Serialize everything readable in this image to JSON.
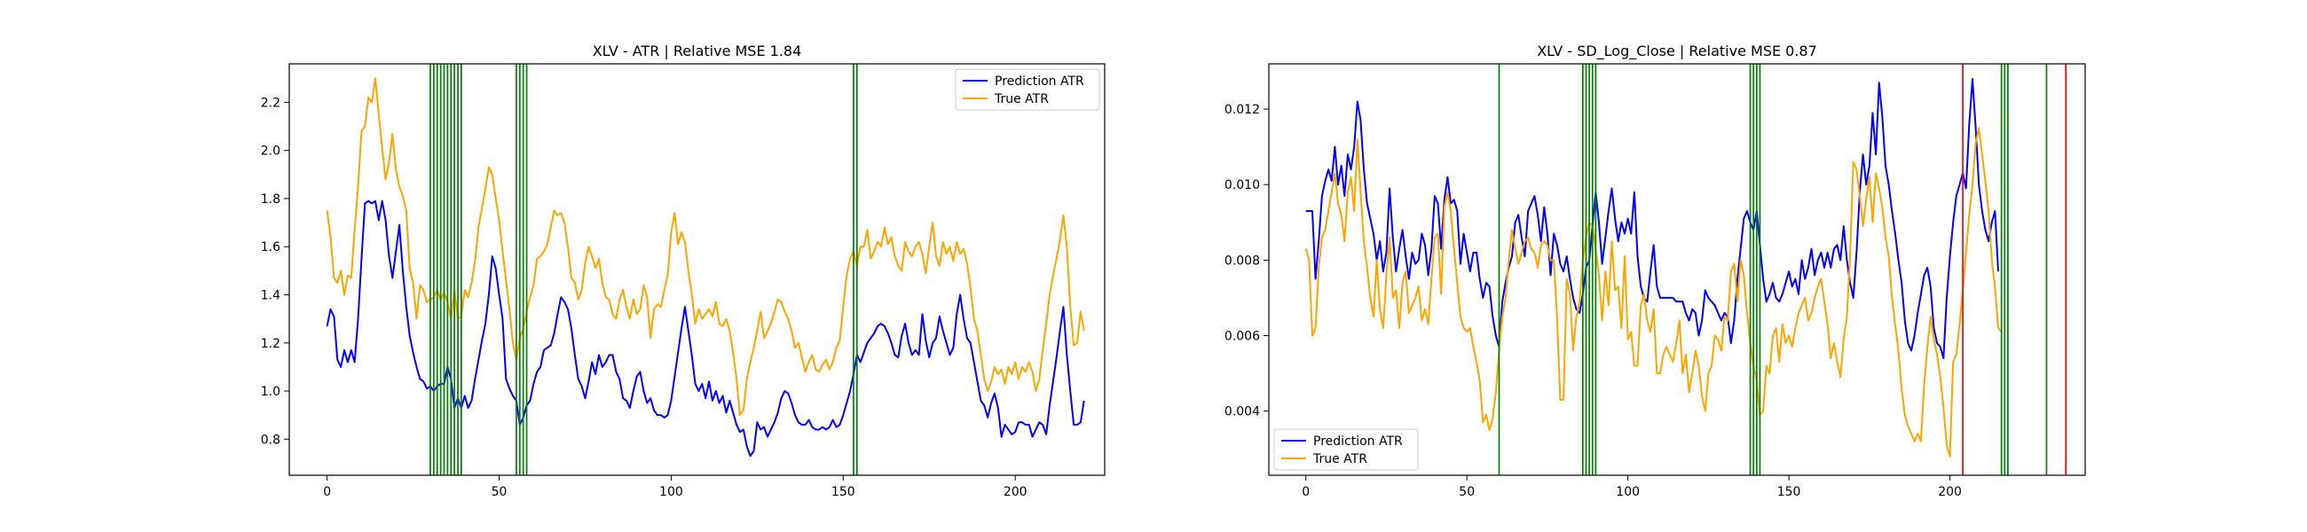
{
  "chart_data": [
    {
      "type": "line",
      "title": "XLV - ATR | Relative MSE 1.84",
      "xlabel": "",
      "ylabel": "",
      "xlim": [
        -11,
        226
      ],
      "ylim": [
        0.65,
        2.36
      ],
      "xticks": [
        0,
        50,
        100,
        150,
        200
      ],
      "yticks": [
        0.8,
        1.0,
        1.2,
        1.4,
        1.6,
        1.8,
        2.0,
        2.2
      ],
      "ytick_format": 1,
      "legend_position": "upper right",
      "vlines": [
        {
          "color": "#008000",
          "x": [
            30,
            31,
            32,
            33,
            34,
            35,
            36,
            37,
            38,
            39,
            55,
            56,
            57,
            58,
            153,
            154
          ]
        }
      ],
      "series": [
        {
          "name": "Prediction ATR",
          "color": "#0000ff",
          "values": [
            1.27,
            1.34,
            1.31,
            1.13,
            1.1,
            1.17,
            1.12,
            1.17,
            1.12,
            1.3,
            1.55,
            1.78,
            1.79,
            1.78,
            1.79,
            1.71,
            1.79,
            1.71,
            1.56,
            1.47,
            1.58,
            1.69,
            1.5,
            1.35,
            1.23,
            1.16,
            1.1,
            1.05,
            1.04,
            1.01,
            1.02,
            1.0,
            1.02,
            1.03,
            1.03,
            1.1,
            1.05,
            0.93,
            0.97,
            0.93,
            0.98,
            0.93,
            0.96,
            1.05,
            1.13,
            1.21,
            1.28,
            1.4,
            1.56,
            1.51,
            1.4,
            1.3,
            1.05,
            1.01,
            0.98,
            0.96,
            0.86,
            0.89,
            0.94,
            0.96,
            1.03,
            1.08,
            1.1,
            1.17,
            1.18,
            1.19,
            1.24,
            1.32,
            1.39,
            1.37,
            1.34,
            1.26,
            1.15,
            1.05,
            1.02,
            0.97,
            1.04,
            1.12,
            1.07,
            1.15,
            1.1,
            1.12,
            1.15,
            1.15,
            1.08,
            1.05,
            0.97,
            0.96,
            0.93,
            1.0,
            1.06,
            1.08,
            1.0,
            0.95,
            0.97,
            0.92,
            0.9,
            0.9,
            0.89,
            0.9,
            0.96,
            1.06,
            1.16,
            1.26,
            1.35,
            1.25,
            1.15,
            1.03,
            1.0,
            1.03,
            0.97,
            1.04,
            0.96,
            1.0,
            0.95,
            0.98,
            0.91,
            0.96,
            0.91,
            0.86,
            0.83,
            0.84,
            0.77,
            0.73,
            0.75,
            0.87,
            0.84,
            0.85,
            0.81,
            0.84,
            0.87,
            0.91,
            0.97,
            1.0,
            0.99,
            0.95,
            0.9,
            0.87,
            0.86,
            0.86,
            0.88,
            0.85,
            0.84,
            0.84,
            0.85,
            0.84,
            0.85,
            0.88,
            0.85,
            0.86,
            0.9,
            0.95,
            1.0,
            1.07,
            1.15,
            1.12,
            1.16,
            1.2,
            1.22,
            1.24,
            1.27,
            1.28,
            1.27,
            1.24,
            1.2,
            1.15,
            1.14,
            1.23,
            1.28,
            1.2,
            1.15,
            1.17,
            1.15,
            1.32,
            1.21,
            1.14,
            1.2,
            1.22,
            1.31,
            1.25,
            1.2,
            1.15,
            1.18,
            1.32,
            1.4,
            1.3,
            1.22,
            1.2,
            1.12,
            1.04,
            0.96,
            0.94,
            0.89,
            0.95,
            0.99,
            0.93,
            0.81,
            0.86,
            0.84,
            0.82,
            0.83,
            0.87,
            0.87,
            0.86,
            0.86,
            0.81,
            0.84,
            0.87,
            0.86,
            0.82,
            0.94,
            1.04,
            1.14,
            1.25,
            1.35,
            1.15,
            1.0,
            0.86,
            0.86,
            0.87,
            0.96
          ]
        },
        {
          "name": "True ATR",
          "color": "#ffa500",
          "values": [
            1.75,
            1.64,
            1.47,
            1.45,
            1.5,
            1.4,
            1.48,
            1.47,
            1.67,
            1.85,
            2.08,
            2.1,
            2.22,
            2.2,
            2.3,
            2.15,
            2.01,
            1.88,
            1.95,
            2.07,
            1.92,
            1.85,
            1.81,
            1.75,
            1.51,
            1.45,
            1.3,
            1.44,
            1.42,
            1.37,
            1.38,
            1.39,
            1.42,
            1.38,
            1.41,
            1.37,
            1.3,
            1.42,
            1.3,
            1.31,
            1.42,
            1.39,
            1.45,
            1.54,
            1.68,
            1.76,
            1.84,
            1.93,
            1.9,
            1.8,
            1.71,
            1.58,
            1.46,
            1.34,
            1.2,
            1.13,
            1.22,
            1.26,
            1.33,
            1.39,
            1.44,
            1.55,
            1.56,
            1.58,
            1.61,
            1.68,
            1.75,
            1.73,
            1.74,
            1.7,
            1.6,
            1.47,
            1.45,
            1.38,
            1.42,
            1.53,
            1.6,
            1.56,
            1.51,
            1.55,
            1.45,
            1.39,
            1.38,
            1.32,
            1.3,
            1.38,
            1.42,
            1.35,
            1.3,
            1.38,
            1.32,
            1.34,
            1.44,
            1.39,
            1.22,
            1.34,
            1.36,
            1.35,
            1.42,
            1.48,
            1.66,
            1.74,
            1.61,
            1.66,
            1.62,
            1.5,
            1.4,
            1.28,
            1.34,
            1.3,
            1.32,
            1.34,
            1.31,
            1.37,
            1.28,
            1.27,
            1.3,
            1.25,
            1.16,
            1.05,
            0.9,
            0.92,
            1.05,
            1.12,
            1.18,
            1.25,
            1.33,
            1.22,
            1.25,
            1.28,
            1.33,
            1.38,
            1.37,
            1.33,
            1.3,
            1.25,
            1.18,
            1.2,
            1.14,
            1.08,
            1.12,
            1.15,
            1.09,
            1.08,
            1.11,
            1.13,
            1.09,
            1.12,
            1.18,
            1.21,
            1.35,
            1.48,
            1.55,
            1.58,
            1.52,
            1.6,
            1.6,
            1.67,
            1.55,
            1.58,
            1.62,
            1.6,
            1.68,
            1.61,
            1.64,
            1.56,
            1.52,
            1.5,
            1.62,
            1.58,
            1.56,
            1.6,
            1.62,
            1.57,
            1.49,
            1.6,
            1.7,
            1.56,
            1.52,
            1.62,
            1.57,
            1.6,
            1.54,
            1.62,
            1.57,
            1.59,
            1.53,
            1.43,
            1.3,
            1.25,
            1.15,
            1.05,
            1.0,
            1.04,
            1.1,
            1.07,
            1.09,
            1.03,
            1.1,
            1.07,
            1.12,
            1.05,
            1.1,
            1.08,
            1.12,
            1.08,
            1.0,
            1.05,
            1.17,
            1.28,
            1.4,
            1.48,
            1.55,
            1.63,
            1.73,
            1.6,
            1.35,
            1.19,
            1.2,
            1.33,
            1.25
          ]
        }
      ]
    },
    {
      "type": "line",
      "title": "XLV - SD_Log_Close | Relative MSE 0.87",
      "xlabel": "",
      "ylabel": "",
      "xlim": [
        -11.5,
        242
      ],
      "ylim": [
        0.0023,
        0.0132
      ],
      "xticks": [
        0,
        50,
        100,
        150,
        200
      ],
      "yticks": [
        0.004,
        0.006,
        0.008,
        0.01,
        0.012
      ],
      "ytick_format": 3,
      "legend_position": "lower left",
      "vlines": [
        {
          "color": "#008000",
          "x": [
            60,
            86,
            87,
            88,
            89,
            90,
            138,
            139,
            140,
            141,
            216,
            217,
            218,
            230
          ]
        },
        {
          "color": "#ff0000",
          "x": [
            204,
            236
          ]
        }
      ],
      "series": [
        {
          "name": "Prediction ATR",
          "color": "#0000ff",
          "values": [
            0.0093,
            0.0093,
            0.0093,
            0.0075,
            0.0085,
            0.0097,
            0.0101,
            0.0104,
            0.0101,
            0.011,
            0.01,
            0.0105,
            0.0097,
            0.0108,
            0.0104,
            0.011,
            0.0122,
            0.0117,
            0.0104,
            0.0095,
            0.0091,
            0.0087,
            0.008,
            0.0085,
            0.0077,
            0.0082,
            0.0099,
            0.0086,
            0.0077,
            0.0083,
            0.0088,
            0.0081,
            0.0075,
            0.0082,
            0.0079,
            0.008,
            0.0087,
            0.0084,
            0.0076,
            0.0083,
            0.0097,
            0.0095,
            0.0083,
            0.0096,
            0.0102,
            0.0095,
            0.0096,
            0.0093,
            0.0079,
            0.0087,
            0.0082,
            0.0077,
            0.0082,
            0.0082,
            0.0075,
            0.007,
            0.0074,
            0.0073,
            0.0065,
            0.006,
            0.0057,
            0.0069,
            0.0074,
            0.0078,
            0.0081,
            0.009,
            0.0092,
            0.0086,
            0.0081,
            0.0093,
            0.0095,
            0.0097,
            0.0092,
            0.0085,
            0.0094,
            0.0087,
            0.0076,
            0.0087,
            0.0084,
            0.0079,
            0.0077,
            0.0081,
            0.0075,
            0.007,
            0.0067,
            0.0066,
            0.0071,
            0.0078,
            0.008,
            0.0089,
            0.0098,
            0.009,
            0.0079,
            0.0086,
            0.0093,
            0.0099,
            0.0091,
            0.0085,
            0.009,
            0.0087,
            0.0091,
            0.0087,
            0.0098,
            0.0081,
            0.0073,
            0.007,
            0.0069,
            0.0077,
            0.0084,
            0.0073,
            0.007,
            0.007,
            0.007,
            0.007,
            0.007,
            0.0069,
            0.0069,
            0.0069,
            0.0066,
            0.0064,
            0.0067,
            0.0066,
            0.006,
            0.0064,
            0.0072,
            0.007,
            0.0069,
            0.0068,
            0.0066,
            0.0064,
            0.0066,
            0.0065,
            0.0058,
            0.0064,
            0.0075,
            0.0083,
            0.0091,
            0.0093,
            0.009,
            0.0088,
            0.0093,
            0.0084,
            0.0075,
            0.0069,
            0.0071,
            0.0074,
            0.007,
            0.0069,
            0.0071,
            0.0074,
            0.0077,
            0.0073,
            0.0075,
            0.0071,
            0.008,
            0.0075,
            0.0078,
            0.0083,
            0.0076,
            0.008,
            0.0082,
            0.0078,
            0.0082,
            0.0078,
            0.0083,
            0.0084,
            0.008,
            0.0089,
            0.008,
            0.0074,
            0.007,
            0.0082,
            0.0098,
            0.0108,
            0.01,
            0.0105,
            0.0119,
            0.0108,
            0.0127,
            0.0118,
            0.0105,
            0.01,
            0.0093,
            0.0087,
            0.008,
            0.0074,
            0.0064,
            0.0058,
            0.0056,
            0.006,
            0.0066,
            0.0071,
            0.0076,
            0.0078,
            0.0073,
            0.0062,
            0.0058,
            0.0057,
            0.0054,
            0.007,
            0.0081,
            0.009,
            0.0097,
            0.01,
            0.0103,
            0.0099,
            0.0116,
            0.0128,
            0.0115,
            0.01,
            0.0093,
            0.0088,
            0.0085,
            0.009,
            0.0093,
            0.0077
          ]
        },
        {
          "name": "True ATR",
          "color": "#ffa500",
          "values": [
            0.0083,
            0.008,
            0.006,
            0.0062,
            0.0078,
            0.0086,
            0.0088,
            0.0093,
            0.0098,
            0.0103,
            0.0095,
            0.0092,
            0.0085,
            0.0098,
            0.0102,
            0.0093,
            0.0112,
            0.0098,
            0.0085,
            0.0078,
            0.007,
            0.0065,
            0.008,
            0.0067,
            0.0062,
            0.0076,
            0.0086,
            0.007,
            0.0072,
            0.0062,
            0.0074,
            0.0077,
            0.0066,
            0.0068,
            0.007,
            0.0073,
            0.0064,
            0.0067,
            0.0063,
            0.0075,
            0.0086,
            0.0087,
            0.0071,
            0.0094,
            0.0098,
            0.0093,
            0.0083,
            0.0074,
            0.0065,
            0.0062,
            0.0061,
            0.0062,
            0.0057,
            0.0053,
            0.0048,
            0.0037,
            0.0039,
            0.0035,
            0.0038,
            0.0045,
            0.0056,
            0.0065,
            0.007,
            0.008,
            0.0088,
            0.0083,
            0.0079,
            0.0082,
            0.0085,
            0.0086,
            0.0083,
            0.0082,
            0.0078,
            0.0084,
            0.0085,
            0.0084,
            0.008,
            0.008,
            0.0065,
            0.0043,
            0.0043,
            0.0075,
            0.0071,
            0.0056,
            0.0065,
            0.0069,
            0.008,
            0.0086,
            0.009,
            0.0089,
            0.0083,
            0.0076,
            0.0064,
            0.0077,
            0.0068,
            0.0085,
            0.0072,
            0.0073,
            0.0062,
            0.0081,
            0.0059,
            0.0061,
            0.0052,
            0.0052,
            0.0068,
            0.0071,
            0.0064,
            0.0061,
            0.0067,
            0.005,
            0.005,
            0.0055,
            0.0057,
            0.0055,
            0.0053,
            0.0058,
            0.0064,
            0.005,
            0.0055,
            0.0045,
            0.005,
            0.0056,
            0.0052,
            0.0044,
            0.004,
            0.005,
            0.0052,
            0.006,
            0.0059,
            0.0056,
            0.0065,
            0.0064,
            0.0077,
            0.0079,
            0.0069,
            0.008,
            0.0076,
            0.0066,
            0.0058,
            0.0052,
            0.0048,
            0.0039,
            0.004,
            0.0052,
            0.005,
            0.006,
            0.0062,
            0.0053,
            0.0063,
            0.0058,
            0.006,
            0.0057,
            0.0062,
            0.0066,
            0.0068,
            0.007,
            0.0064,
            0.0066,
            0.007,
            0.0073,
            0.0075,
            0.0069,
            0.0063,
            0.0054,
            0.0058,
            0.0053,
            0.0049,
            0.0059,
            0.0065,
            0.0081,
            0.0106,
            0.0104,
            0.0097,
            0.0089,
            0.0096,
            0.0102,
            0.009,
            0.0103,
            0.0099,
            0.0094,
            0.0086,
            0.0081,
            0.007,
            0.0063,
            0.0056,
            0.0046,
            0.0039,
            0.0036,
            0.0034,
            0.0032,
            0.0034,
            0.0032,
            0.0047,
            0.0057,
            0.0065,
            0.0059,
            0.0055,
            0.0049,
            0.0041,
            0.0031,
            0.0028,
            0.0053,
            0.0055,
            0.0063,
            0.0072,
            0.0082,
            0.0092,
            0.01,
            0.0111,
            0.0115,
            0.0108,
            0.0101,
            0.0093,
            0.008,
            0.0073,
            0.0062,
            0.0061
          ]
        }
      ]
    }
  ]
}
